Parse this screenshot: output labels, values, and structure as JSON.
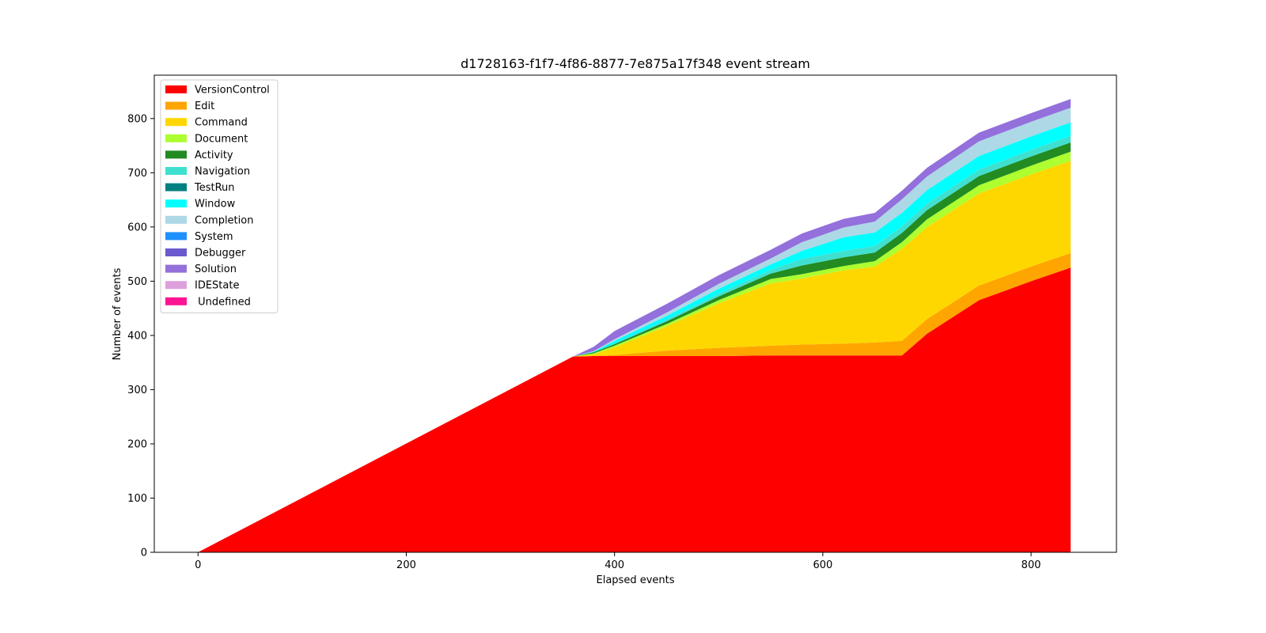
{
  "chart_data": {
    "type": "area",
    "title": "d1728163-f1f7-4f86-8877-7e875a17f348 event stream",
    "xlabel": "Elapsed events",
    "ylabel": "Number of events",
    "xlim": [
      -42,
      882
    ],
    "ylim": [
      0,
      880
    ],
    "xticks": [
      0,
      200,
      400,
      600,
      800
    ],
    "yticks": [
      0,
      100,
      200,
      300,
      400,
      500,
      600,
      700,
      800
    ],
    "legend_position": "upper-left",
    "x": [
      0,
      360,
      380,
      400,
      450,
      500,
      550,
      580,
      620,
      650,
      676,
      700,
      750,
      800,
      838
    ],
    "series": [
      {
        "name": "VersionControl",
        "color": "#ff0000",
        "values": [
          0,
          361,
          362,
          362,
          362,
          362,
          363,
          363,
          363,
          363,
          363,
          403,
          465,
          500,
          525
        ]
      },
      {
        "name": "Edit",
        "color": "#ffa500",
        "values": [
          0,
          0,
          0,
          2,
          10,
          15,
          18,
          20,
          22,
          24,
          27,
          27,
          27,
          27,
          27
        ]
      },
      {
        "name": "Command",
        "color": "#ffd700",
        "values": [
          0,
          0,
          3,
          14,
          45,
          82,
          115,
          122,
          135,
          140,
          170,
          170,
          170,
          170,
          170
        ]
      },
      {
        "name": "Document",
        "color": "#adff2f",
        "values": [
          0,
          0,
          2,
          3,
          4,
          6,
          8,
          8,
          8,
          10,
          12,
          14,
          15,
          16,
          17
        ]
      },
      {
        "name": "Activity",
        "color": "#228b22",
        "values": [
          0,
          0,
          2,
          3,
          5,
          7,
          10,
          16,
          16,
          16,
          17,
          17,
          17,
          17,
          17
        ]
      },
      {
        "name": "Navigation",
        "color": "#40e0d0",
        "values": [
          0,
          0,
          0,
          1,
          3,
          5,
          7,
          12,
          12,
          12,
          12,
          12,
          12,
          12,
          12
        ]
      },
      {
        "name": "TestRun",
        "color": "#008080",
        "values": [
          0,
          0,
          0,
          0,
          0,
          0,
          0,
          0,
          0,
          0,
          0,
          0,
          0,
          0,
          0
        ]
      },
      {
        "name": "Window",
        "color": "#00ffff",
        "values": [
          0,
          0,
          1,
          5,
          7,
          9,
          10,
          15,
          25,
          25,
          25,
          25,
          25,
          25,
          25
        ]
      },
      {
        "name": "Completion",
        "color": "#add8e6",
        "values": [
          0,
          0,
          1,
          3,
          6,
          9,
          11,
          16,
          18,
          20,
          25,
          25,
          27,
          27,
          27
        ]
      },
      {
        "name": "System",
        "color": "#1e90ff",
        "values": [
          0,
          0,
          0,
          0,
          0,
          0,
          0,
          0,
          0,
          0,
          0,
          0,
          0,
          0,
          0
        ]
      },
      {
        "name": "Debugger",
        "color": "#6a5acd",
        "values": [
          0,
          0,
          0,
          0,
          0,
          0,
          0,
          0,
          0,
          0,
          0,
          0,
          0,
          0,
          0
        ]
      },
      {
        "name": "Solution",
        "color": "#9370db",
        "values": [
          0,
          0,
          8,
          15,
          16,
          16,
          16,
          16,
          16,
          16,
          16,
          16,
          16,
          16,
          16
        ]
      },
      {
        "name": "IDEState",
        "color": "#dda0dd",
        "values": [
          0,
          0,
          0,
          0,
          0,
          0,
          0,
          0,
          0,
          0,
          0,
          0,
          0,
          0,
          0
        ]
      },
      {
        "name": " Undefined",
        "color": "#ff1493",
        "values": [
          0,
          0,
          0,
          0,
          0,
          0,
          0,
          0,
          0,
          0,
          0,
          0,
          0,
          0,
          0
        ]
      }
    ]
  }
}
